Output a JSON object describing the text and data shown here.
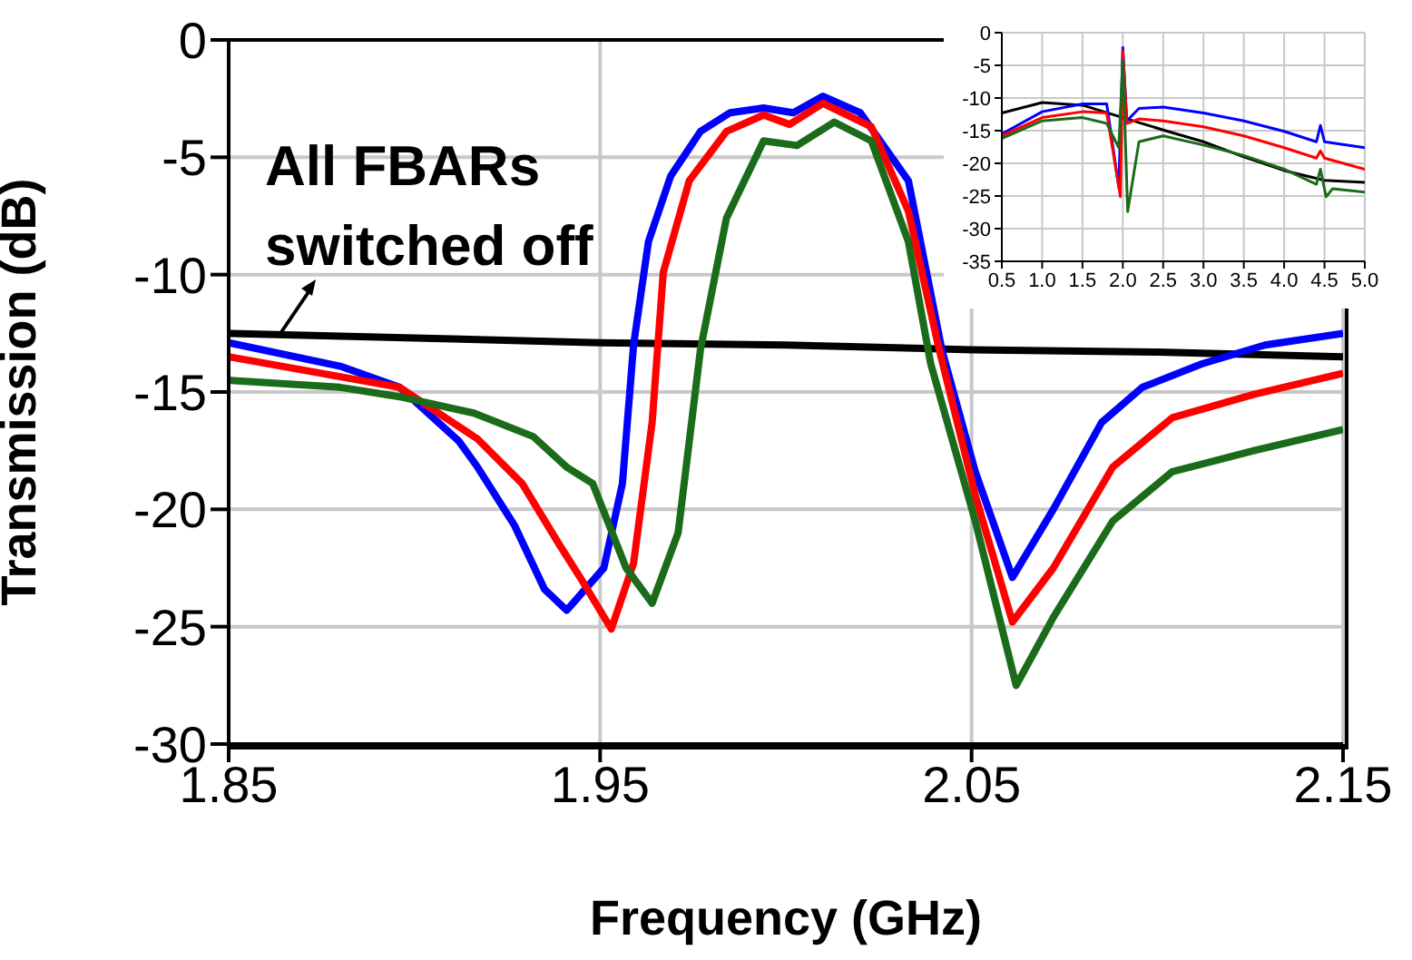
{
  "chart_data": [
    {
      "type": "line",
      "xlabel": "Frequency (GHz)",
      "ylabel": "Transmission (dB)",
      "xlim": [
        1.85,
        2.15
      ],
      "xticks": [
        1.85,
        1.95,
        2.05,
        2.15
      ],
      "ylim": [
        -30,
        0
      ],
      "yticks": [
        -30,
        -25,
        -20,
        -15,
        -10,
        -5,
        0
      ],
      "grid": true,
      "annotations": [
        "All FBARs switched off"
      ],
      "series": [
        {
          "color": "#000000",
          "x": [
            1.85,
            1.9,
            1.95,
            2.0,
            2.05,
            2.1,
            2.15
          ],
          "values": [
            -12.5,
            -12.7,
            -12.9,
            -13.0,
            -13.2,
            -13.3,
            -13.5
          ]
        },
        {
          "color": "#0000ff",
          "x": [
            1.85,
            1.88,
            1.896,
            1.912,
            1.917,
            1.927,
            1.935,
            1.941,
            1.951,
            1.956,
            1.959,
            1.963,
            1.969,
            1.977,
            1.985,
            1.994,
            2.002,
            2.01,
            2.02,
            2.033,
            2.042,
            2.051,
            2.061,
            2.072,
            2.085,
            2.096,
            2.112,
            2.129,
            2.15
          ],
          "values": [
            -12.9,
            -13.9,
            -14.8,
            -17.1,
            -18.2,
            -20.7,
            -23.4,
            -24.3,
            -22.5,
            -18.9,
            -13.0,
            -8.6,
            -5.8,
            -3.9,
            -3.1,
            -2.9,
            -3.1,
            -2.4,
            -3.1,
            -6.0,
            -13.2,
            -18.4,
            -22.9,
            -20.0,
            -16.3,
            -14.8,
            -13.8,
            -13.0,
            -12.5
          ]
        },
        {
          "color": "#ff0000",
          "x": [
            1.85,
            1.896,
            1.917,
            1.929,
            1.939,
            1.945,
            1.953,
            1.959,
            1.964,
            1.967,
            1.974,
            1.984,
            1.994,
            2.001,
            2.01,
            2.023,
            2.033,
            2.041,
            2.051,
            2.061,
            2.072,
            2.088,
            2.104,
            2.126,
            2.15
          ],
          "values": [
            -13.5,
            -14.8,
            -17.0,
            -18.9,
            -21.5,
            -23.0,
            -25.1,
            -22.3,
            -16.3,
            -9.9,
            -6.0,
            -3.9,
            -3.2,
            -3.6,
            -2.7,
            -3.7,
            -7.3,
            -13.0,
            -19.4,
            -24.8,
            -22.5,
            -18.2,
            -16.1,
            -15.1,
            -14.2
          ]
        },
        {
          "color": "#1a6b1a",
          "x": [
            1.85,
            1.88,
            1.896,
            1.916,
            1.932,
            1.941,
            1.948,
            1.957,
            1.964,
            1.971,
            1.977,
            1.984,
            1.994,
            2.003,
            2.013,
            2.023,
            2.033,
            2.039,
            2.051,
            2.062,
            2.072,
            2.088,
            2.104,
            2.126,
            2.15
          ],
          "values": [
            -14.5,
            -14.8,
            -15.2,
            -15.9,
            -16.9,
            -18.2,
            -18.9,
            -22.5,
            -24.0,
            -21.0,
            -13.2,
            -7.6,
            -4.3,
            -4.5,
            -3.5,
            -4.3,
            -8.6,
            -13.8,
            -20.5,
            -27.5,
            -24.6,
            -20.5,
            -18.4,
            -17.5,
            -16.6
          ]
        }
      ]
    },
    {
      "type": "line",
      "xlim": [
        0.5,
        5.0
      ],
      "xticks": [
        0.5,
        {
          "value": 1,
          "label": "1.0"
        },
        1.5,
        {
          "value": 2,
          "label": "2.0"
        },
        2.5,
        {
          "value": 3,
          "label": "3.0"
        },
        3.5,
        {
          "value": 4,
          "label": "4.0"
        },
        4.5,
        {
          "value": 5,
          "label": "5.0"
        }
      ],
      "ylim": [
        -35,
        0
      ],
      "yticks": [
        -35,
        -30,
        -25,
        -20,
        -15,
        -10,
        -5,
        0
      ],
      "grid": true,
      "series": [
        {
          "color": "#000000",
          "x": [
            0.5,
            1.0,
            1.5,
            2.0,
            2.5,
            3.0,
            3.5,
            4.0,
            4.5,
            5.0
          ],
          "values": [
            -12.3,
            -10.7,
            -11.1,
            -13.0,
            -14.9,
            -16.7,
            -19.0,
            -21.1,
            -22.6,
            -22.9
          ]
        },
        {
          "color": "#0000ff",
          "x": [
            0.5,
            1.0,
            1.5,
            1.8,
            1.95,
            2.0,
            2.05,
            2.2,
            2.5,
            3.0,
            3.5,
            4.0,
            4.4,
            4.45,
            4.5,
            5.0
          ],
          "values": [
            -15.5,
            -12.1,
            -10.9,
            -10.9,
            -23.7,
            -2.3,
            -13.5,
            -11.6,
            -11.4,
            -12.3,
            -13.5,
            -15.1,
            -16.7,
            -14.2,
            -16.7,
            -17.6
          ]
        },
        {
          "color": "#ff0000",
          "x": [
            0.5,
            1.0,
            1.5,
            1.8,
            1.97,
            2.0,
            2.05,
            2.2,
            2.5,
            3.0,
            3.5,
            4.0,
            4.4,
            4.45,
            4.5,
            5.0
          ],
          "values": [
            -15.8,
            -13.0,
            -12.1,
            -12.3,
            -25.1,
            -2.8,
            -13.9,
            -13.2,
            -13.5,
            -14.4,
            -15.8,
            -17.6,
            -19.2,
            -18.1,
            -19.2,
            -20.9
          ]
        },
        {
          "color": "#1a6b1a",
          "x": [
            0.5,
            1.0,
            1.5,
            1.8,
            1.95,
            2.0,
            2.06,
            2.2,
            2.5,
            3.0,
            3.5,
            4.0,
            4.4,
            4.45,
            4.52,
            4.6,
            5.0
          ],
          "values": [
            -16.2,
            -13.5,
            -13.0,
            -13.9,
            -17.6,
            -4.2,
            -27.4,
            -16.7,
            -15.8,
            -17.2,
            -18.8,
            -20.9,
            -23.2,
            -20.9,
            -25.1,
            -23.9,
            -24.4
          ]
        }
      ]
    }
  ]
}
